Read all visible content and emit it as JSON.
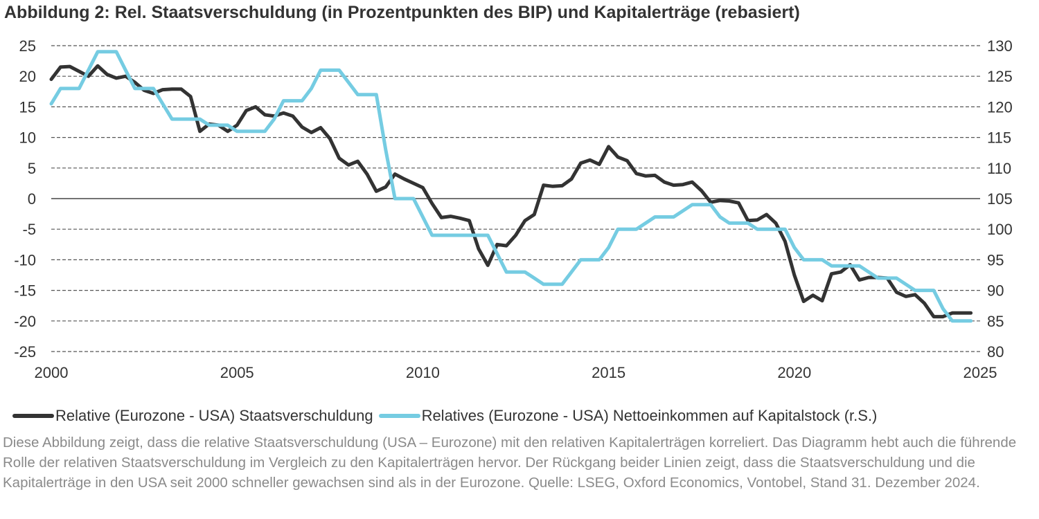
{
  "title": "Abbildung 2: Rel. Staatsverschuldung (in Prozentpunkten des BIP) und Kapitalerträge (rebasiert)",
  "caption": "Diese Abbildung zeigt, dass die relative Staatsverschuldung (USA – Eurozone) mit den relativen Kapitalerträgen korreliert. Das Diagramm hebt auch die führende Rolle der relativen Staatsverschuldung im Vergleich zu den Kapitalerträgen hervor. Der Rückgang beider Linien zeigt, dass die Staatsverschuldung und die Kapitalerträge in den USA seit 2000 schneller gewachsen sind als in der Eurozone. Quelle: LSEG, Oxford Economics, Vontobel, Stand 31. Dezember 2024.",
  "chart_data": {
    "type": "line",
    "title": "Abbildung 2: Rel. Staatsverschuldung (in Prozentpunkten des BIP) und Kapitalerträge (rebasiert)",
    "xlim": [
      2000,
      2025
    ],
    "x_ticks": [
      "2000",
      "2005",
      "2010",
      "2015",
      "2020",
      "2025"
    ],
    "ylim_left": [
      -25,
      25
    ],
    "y_ticks_left": [
      "25",
      "20",
      "15",
      "10",
      "5",
      "0",
      "-5",
      "-10",
      "-15",
      "-20",
      "-25"
    ],
    "ylim_right": [
      80,
      130
    ],
    "y_ticks_right": [
      "130",
      "125",
      "120",
      "115",
      "110",
      "105",
      "100",
      "95",
      "90",
      "85",
      "80"
    ],
    "grid": "horizontal dashed",
    "legend": "bottom",
    "x": [
      2000,
      2000.25,
      2000.5,
      2000.75,
      2001,
      2001.25,
      2001.5,
      2001.75,
      2002,
      2002.25,
      2002.5,
      2002.75,
      2003,
      2003.25,
      2003.5,
      2003.75,
      2004,
      2004.25,
      2004.5,
      2004.75,
      2005,
      2005.25,
      2005.5,
      2005.75,
      2006,
      2006.25,
      2006.5,
      2006.75,
      2007,
      2007.25,
      2007.5,
      2007.75,
      2008,
      2008.25,
      2008.5,
      2008.75,
      2009,
      2009.25,
      2009.5,
      2009.75,
      2010,
      2010.25,
      2010.5,
      2010.75,
      2011,
      2011.25,
      2011.5,
      2011.75,
      2012,
      2012.25,
      2012.5,
      2012.75,
      2013,
      2013.25,
      2013.5,
      2013.75,
      2014,
      2014.25,
      2014.5,
      2014.75,
      2015,
      2015.25,
      2015.5,
      2015.75,
      2016,
      2016.25,
      2016.5,
      2016.75,
      2017,
      2017.25,
      2017.5,
      2017.75,
      2018,
      2018.25,
      2018.5,
      2018.75,
      2019,
      2019.25,
      2019.5,
      2019.75,
      2020,
      2020.25,
      2020.5,
      2020.75,
      2021,
      2021.25,
      2021.5,
      2021.75,
      2022,
      2022.25,
      2022.5,
      2022.75,
      2023,
      2023.25,
      2023.5,
      2023.75,
      2024,
      2024.25,
      2024.5,
      2024.75
    ],
    "series": [
      {
        "name": "Relative (Eurozone - USA) Staatsverschuldung",
        "axis": "left",
        "color": "#333333",
        "values": [
          19.5,
          21.5,
          21.6,
          20.8,
          20.0,
          21.7,
          20.3,
          19.7,
          20.0,
          19.0,
          17.7,
          17.2,
          17.8,
          17.9,
          17.9,
          16.7,
          11.0,
          12.2,
          12.0,
          11.0,
          12.0,
          14.4,
          15.0,
          13.7,
          13.5,
          14.0,
          13.5,
          11.7,
          10.8,
          11.6,
          9.8,
          6.6,
          5.5,
          6.1,
          4.0,
          1.2,
          1.9,
          4.0,
          3.2,
          2.5,
          1.8,
          -0.8,
          -3.1,
          -2.9,
          -3.2,
          -3.6,
          -8.2,
          -10.9,
          -7.5,
          -7.7,
          -6.0,
          -3.6,
          -2.6,
          2.2,
          2.0,
          2.1,
          3.2,
          5.8,
          6.3,
          5.6,
          8.5,
          6.8,
          6.2,
          4.1,
          3.7,
          3.8,
          2.7,
          2.2,
          2.3,
          2.7,
          1.3,
          -0.6,
          -0.3,
          -0.4,
          -0.7,
          -3.6,
          -3.5,
          -2.6,
          -4.0,
          -7.0,
          -12.5,
          -16.8,
          -15.8,
          -16.7,
          -12.3,
          -12.0,
          -10.8,
          -13.3,
          -12.9,
          -12.9,
          -13.0,
          -15.3,
          -16.0,
          -15.7,
          -17.1,
          -19.3,
          -19.3,
          -18.7,
          -18.7,
          -18.7
        ]
      },
      {
        "name": "Relatives (Eurozone - USA) Nettoeinkommen auf Kapitalstock (r.S.)",
        "axis": "right",
        "color": "#75CCE2",
        "values": [
          120.5,
          123,
          123,
          123,
          126,
          129,
          129,
          129,
          126,
          123,
          123,
          123,
          120.5,
          118,
          118,
          118,
          118,
          117,
          117,
          117,
          116,
          116,
          116,
          116,
          118,
          121,
          121,
          121,
          123,
          126,
          126,
          126,
          124,
          122,
          122,
          122,
          113,
          105,
          105,
          105,
          102,
          99,
          99,
          99,
          99,
          99,
          99,
          99,
          96,
          93,
          93,
          93,
          92,
          91,
          91,
          91,
          93,
          95,
          95,
          95,
          97,
          100,
          100,
          100,
          101,
          102,
          102,
          102,
          103,
          104,
          104,
          104,
          102,
          101,
          101,
          101,
          100,
          100,
          100,
          100,
          97,
          95,
          95,
          95,
          94,
          94,
          94,
          94,
          93,
          92,
          92,
          92,
          91,
          90,
          90,
          90,
          87,
          85,
          85,
          85
        ]
      }
    ]
  }
}
